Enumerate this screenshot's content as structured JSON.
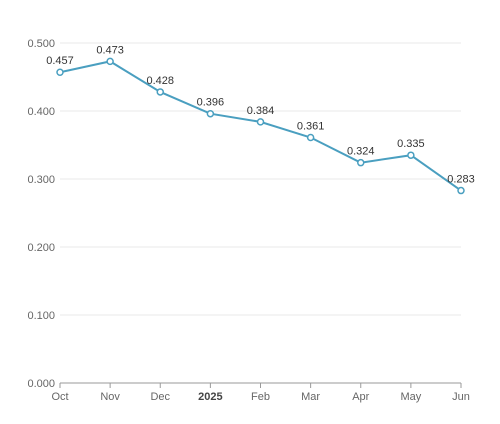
{
  "chart_data": {
    "type": "line",
    "categories": [
      "Oct",
      "Nov",
      "Dec",
      "2025",
      "Feb",
      "Mar",
      "Apr",
      "May",
      "Jun"
    ],
    "bold_categories": [
      "2025"
    ],
    "series": [
      {
        "values": [
          0.457,
          0.473,
          0.428,
          0.396,
          0.384,
          0.361,
          0.324,
          0.335,
          0.283
        ],
        "labels": [
          "0.457",
          "0.473",
          "0.428",
          "0.396",
          "0.384",
          "0.361",
          "0.324",
          "0.335",
          "0.283"
        ],
        "color": "#4a9fc0"
      }
    ],
    "y_ticks": [
      0.0,
      0.1,
      0.2,
      0.3,
      0.4,
      0.5
    ],
    "y_tick_labels": [
      "0.000",
      "0.100",
      "0.200",
      "0.300",
      "0.400",
      "0.500"
    ],
    "ylim": [
      0,
      0.5
    ],
    "grid": true,
    "legend": "none",
    "title": "",
    "xlabel": "",
    "ylabel": ""
  }
}
